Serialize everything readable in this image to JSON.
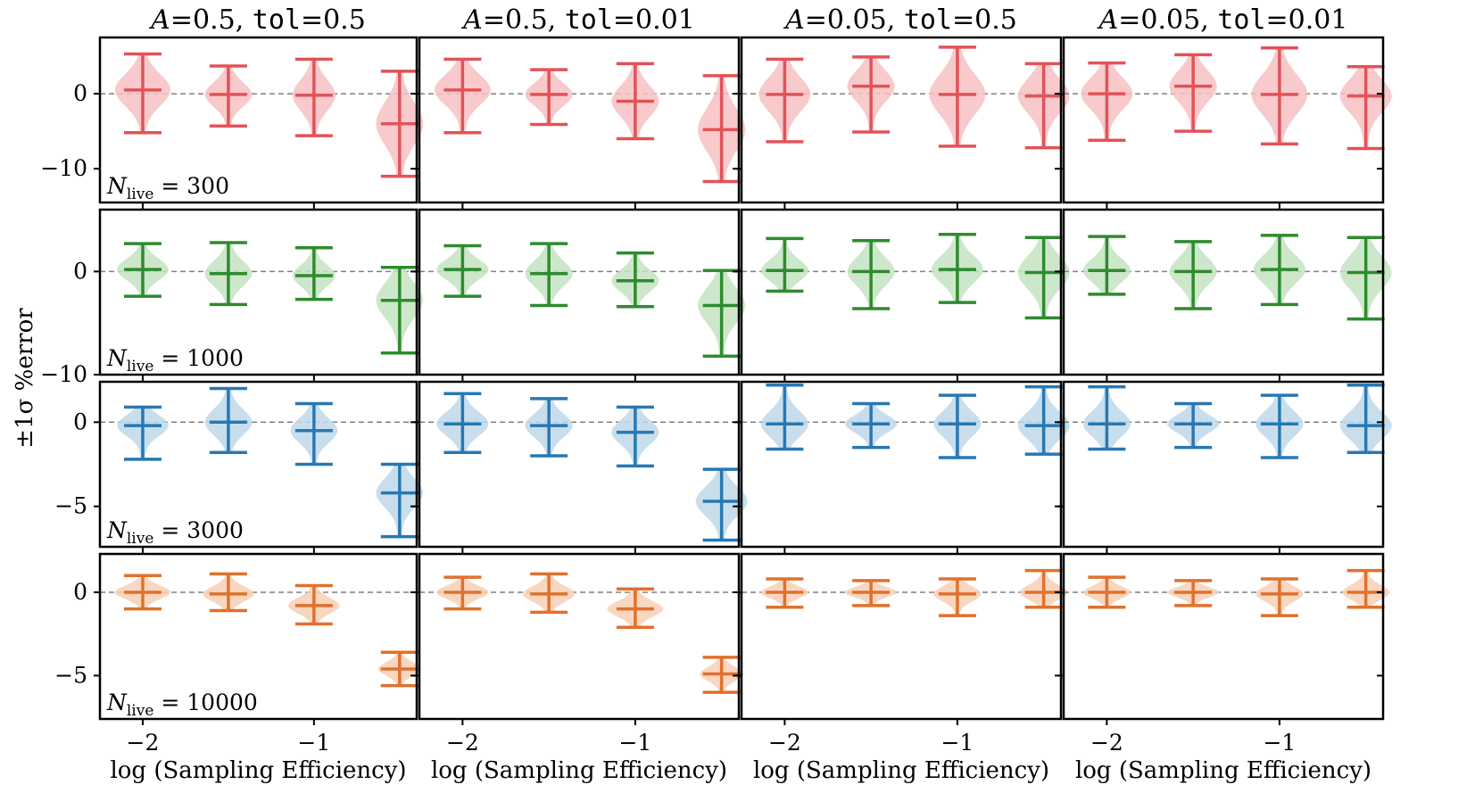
{
  "chart_data": {
    "type": "violin",
    "ylabel": "±1σ %error",
    "xlabel": "log (Sampling Efficiency)",
    "x_ticks": [
      -2,
      -1
    ],
    "x_tick_labels": [
      "−2",
      "−1"
    ],
    "xlim": [
      -2.25,
      -0.4
    ],
    "x_positions": [
      -2.0,
      -1.5,
      -1.0,
      -0.5
    ],
    "reference_line_y": 0,
    "columns": [
      {
        "italic": "A",
        "eq1": "=0.5, ",
        "mono": "tol",
        "eq2": "=0.5"
      },
      {
        "italic": "A",
        "eq1": "=0.5, ",
        "mono": "tol",
        "eq2": "=0.01"
      },
      {
        "italic": "A",
        "eq1": "=0.05, ",
        "mono": "tol",
        "eq2": "=0.5"
      },
      {
        "italic": "A",
        "eq1": "=0.05, ",
        "mono": "tol",
        "eq2": "=0.01"
      }
    ],
    "rows": [
      {
        "nlive_prefix": "N",
        "nlive_sub": "live",
        "nlive_value": "= 300",
        "color": "#e35258",
        "fill": "#f7c1c3",
        "ylim": [
          -14.5,
          7.5
        ],
        "yticks": [
          0,
          -10
        ],
        "ytick_labels": [
          "0",
          "−10"
        ],
        "panels": [
          [
            {
              "min": -5.2,
              "mean": 0.5,
              "max": 5.3,
              "w": 0.65
            },
            {
              "min": -4.3,
              "mean": -0.1,
              "max": 3.7,
              "w": 0.55
            },
            {
              "min": -5.6,
              "mean": -0.2,
              "max": 4.6,
              "w": 0.5
            },
            {
              "min": -11.0,
              "mean": -4.0,
              "max": 3.0,
              "w": 0.55
            }
          ],
          [
            {
              "min": -5.2,
              "mean": 0.5,
              "max": 4.6,
              "w": 0.65
            },
            {
              "min": -4.1,
              "mean": -0.1,
              "max": 3.2,
              "w": 0.55
            },
            {
              "min": -6.0,
              "mean": -1.0,
              "max": 4.0,
              "w": 0.55
            },
            {
              "min": -11.7,
              "mean": -4.8,
              "max": 2.4,
              "w": 0.55
            }
          ],
          [
            {
              "min": -6.4,
              "mean": -0.1,
              "max": 4.6,
              "w": 0.6
            },
            {
              "min": -5.1,
              "mean": 1.0,
              "max": 4.9,
              "w": 0.55
            },
            {
              "min": -7.0,
              "mean": -0.1,
              "max": 6.2,
              "w": 0.65
            },
            {
              "min": -7.2,
              "mean": -0.3,
              "max": 4.0,
              "w": 0.6
            }
          ],
          [
            {
              "min": -6.2,
              "mean": 0.0,
              "max": 4.1,
              "w": 0.6
            },
            {
              "min": -5.0,
              "mean": 1.0,
              "max": 5.2,
              "w": 0.55
            },
            {
              "min": -6.7,
              "mean": -0.1,
              "max": 6.1,
              "w": 0.65
            },
            {
              "min": -7.3,
              "mean": -0.3,
              "max": 3.6,
              "w": 0.6
            }
          ]
        ]
      },
      {
        "nlive_prefix": "N",
        "nlive_sub": "live",
        "nlive_value": "= 1000",
        "color": "#2e8b2e",
        "fill": "#c4e3c2",
        "ylim": [
          -10,
          6
        ],
        "yticks": [
          0,
          -10
        ],
        "ytick_labels": [
          "0",
          "−10"
        ],
        "panels": [
          [
            {
              "min": -2.4,
              "mean": 0.2,
              "max": 2.7,
              "w": 0.6
            },
            {
              "min": -3.2,
              "mean": -0.2,
              "max": 2.8,
              "w": 0.55
            },
            {
              "min": -2.7,
              "mean": -0.4,
              "max": 2.3,
              "w": 0.5
            },
            {
              "min": -7.9,
              "mean": -2.8,
              "max": 0.4,
              "w": 0.55
            }
          ],
          [
            {
              "min": -2.4,
              "mean": 0.2,
              "max": 2.5,
              "w": 0.6
            },
            {
              "min": -3.3,
              "mean": -0.2,
              "max": 2.7,
              "w": 0.55
            },
            {
              "min": -3.4,
              "mean": -0.9,
              "max": 1.8,
              "w": 0.55
            },
            {
              "min": -8.2,
              "mean": -3.3,
              "max": 0.1,
              "w": 0.55
            }
          ],
          [
            {
              "min": -1.9,
              "mean": 0.1,
              "max": 3.2,
              "w": 0.55
            },
            {
              "min": -3.6,
              "mean": 0.0,
              "max": 3.0,
              "w": 0.55
            },
            {
              "min": -3.0,
              "mean": 0.2,
              "max": 3.6,
              "w": 0.6
            },
            {
              "min": -4.5,
              "mean": -0.1,
              "max": 3.3,
              "w": 0.6
            }
          ],
          [
            {
              "min": -2.2,
              "mean": 0.1,
              "max": 3.4,
              "w": 0.55
            },
            {
              "min": -3.6,
              "mean": 0.0,
              "max": 2.9,
              "w": 0.55
            },
            {
              "min": -3.2,
              "mean": 0.2,
              "max": 3.5,
              "w": 0.6
            },
            {
              "min": -4.6,
              "mean": -0.1,
              "max": 3.3,
              "w": 0.6
            }
          ]
        ]
      },
      {
        "nlive_prefix": "N",
        "nlive_sub": "live",
        "nlive_value": "= 3000",
        "color": "#2778b4",
        "fill": "#bfd8ea",
        "ylim": [
          -7.4,
          2.4
        ],
        "yticks": [
          0,
          -5
        ],
        "ytick_labels": [
          "0",
          "−5"
        ],
        "panels": [
          [
            {
              "min": -2.2,
              "mean": -0.2,
              "max": 0.9,
              "w": 0.6
            },
            {
              "min": -1.8,
              "mean": 0.0,
              "max": 2.0,
              "w": 0.55
            },
            {
              "min": -2.5,
              "mean": -0.5,
              "max": 1.1,
              "w": 0.55
            },
            {
              "min": -6.8,
              "mean": -4.2,
              "max": -2.5,
              "w": 0.55
            }
          ],
          [
            {
              "min": -1.8,
              "mean": -0.1,
              "max": 1.7,
              "w": 0.6
            },
            {
              "min": -2.0,
              "mean": -0.2,
              "max": 1.4,
              "w": 0.55
            },
            {
              "min": -2.6,
              "mean": -0.6,
              "max": 0.9,
              "w": 0.55
            },
            {
              "min": -7.0,
              "mean": -4.7,
              "max": -2.8,
              "w": 0.6
            }
          ],
          [
            {
              "min": -1.6,
              "mean": -0.1,
              "max": 2.2,
              "w": 0.55
            },
            {
              "min": -1.5,
              "mean": -0.1,
              "max": 1.1,
              "w": 0.6
            },
            {
              "min": -2.1,
              "mean": -0.1,
              "max": 1.6,
              "w": 0.55
            },
            {
              "min": -1.9,
              "mean": -0.2,
              "max": 2.1,
              "w": 0.6
            }
          ],
          [
            {
              "min": -1.6,
              "mean": -0.1,
              "max": 2.1,
              "w": 0.55
            },
            {
              "min": -1.5,
              "mean": -0.1,
              "max": 1.1,
              "w": 0.6
            },
            {
              "min": -2.1,
              "mean": -0.1,
              "max": 1.6,
              "w": 0.55
            },
            {
              "min": -1.8,
              "mean": -0.2,
              "max": 2.2,
              "w": 0.6
            }
          ]
        ]
      },
      {
        "nlive_prefix": "N",
        "nlive_sub": "live",
        "nlive_value": "= 10000",
        "color": "#e0712d",
        "fill": "#f7cfb5",
        "ylim": [
          -7.6,
          2.3
        ],
        "yticks": [
          0,
          -5
        ],
        "ytick_labels": [
          "0",
          "−5"
        ],
        "panels": [
          [
            {
              "min": -1.0,
              "mean": 0.0,
              "max": 1.0,
              "w": 0.65
            },
            {
              "min": -1.1,
              "mean": -0.1,
              "max": 1.1,
              "w": 0.6
            },
            {
              "min": -1.9,
              "mean": -0.8,
              "max": 0.4,
              "w": 0.6
            },
            {
              "min": -5.6,
              "mean": -4.6,
              "max": -3.6,
              "w": 0.5
            }
          ],
          [
            {
              "min": -1.0,
              "mean": 0.0,
              "max": 0.9,
              "w": 0.6
            },
            {
              "min": -1.2,
              "mean": -0.1,
              "max": 1.1,
              "w": 0.6
            },
            {
              "min": -2.1,
              "mean": -1.0,
              "max": 0.2,
              "w": 0.65
            },
            {
              "min": -6.0,
              "mean": -4.9,
              "max": -3.9,
              "w": 0.5
            }
          ],
          [
            {
              "min": -0.9,
              "mean": 0.0,
              "max": 0.8,
              "w": 0.55
            },
            {
              "min": -0.8,
              "mean": 0.0,
              "max": 0.7,
              "w": 0.6
            },
            {
              "min": -1.4,
              "mean": -0.1,
              "max": 0.8,
              "w": 0.55
            },
            {
              "min": -0.9,
              "mean": 0.0,
              "max": 1.3,
              "w": 0.55
            }
          ],
          [
            {
              "min": -0.9,
              "mean": 0.0,
              "max": 0.9,
              "w": 0.55
            },
            {
              "min": -0.8,
              "mean": 0.0,
              "max": 0.7,
              "w": 0.6
            },
            {
              "min": -1.4,
              "mean": -0.1,
              "max": 0.8,
              "w": 0.55
            },
            {
              "min": -0.9,
              "mean": 0.0,
              "max": 1.3,
              "w": 0.55
            }
          ]
        ]
      }
    ]
  }
}
